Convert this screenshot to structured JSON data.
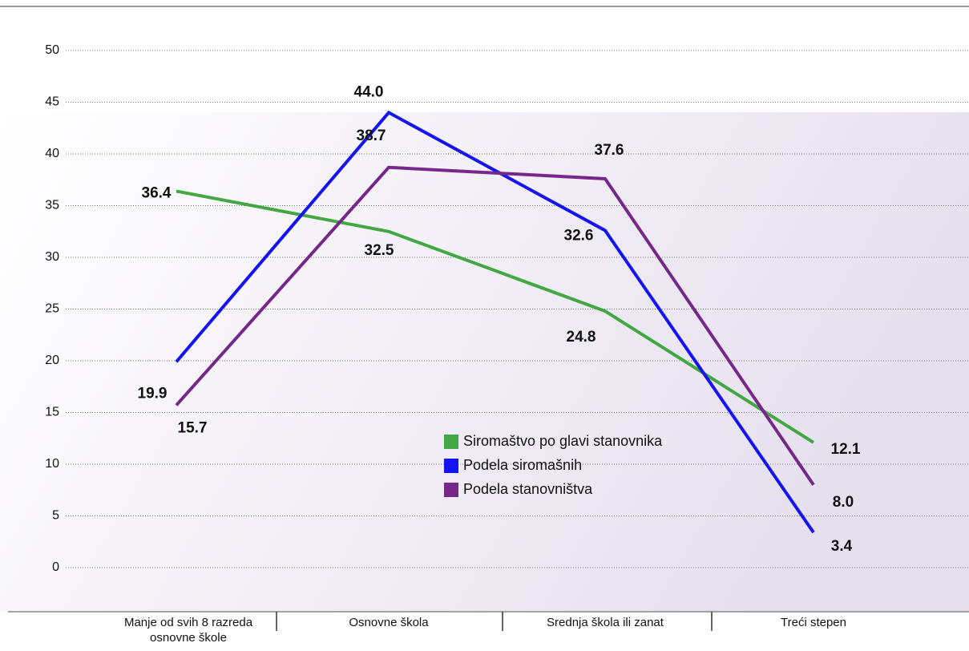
{
  "chart_data": {
    "type": "line",
    "categories": [
      "Manje od svih 8 razreda osnovne škole",
      "Osnovne škola",
      "Srednja škola ili zanat",
      "Treći stepen"
    ],
    "series": [
      {
        "name": "Siromaštvo po glavi stanovnika",
        "color": "#43a843",
        "values": [
          36.4,
          32.5,
          24.8,
          12.1
        ]
      },
      {
        "name": "Podela siromašnih",
        "color": "#1414f0",
        "values": [
          19.9,
          44.0,
          32.6,
          3.4
        ],
        "value_labels": [
          "19.9",
          "44.0",
          "32.6",
          "3.4"
        ]
      },
      {
        "name": "Podela stanovništva",
        "color": "#76288a",
        "values": [
          15.7,
          38.7,
          37.6,
          8.0
        ],
        "value_labels": [
          "15.7",
          "38.7",
          "37.6",
          "8.0"
        ]
      }
    ],
    "ylim": [
      0,
      50
    ],
    "yticks": [
      0,
      5,
      10,
      15,
      20,
      25,
      30,
      35,
      40,
      45,
      50
    ],
    "grid": true
  }
}
